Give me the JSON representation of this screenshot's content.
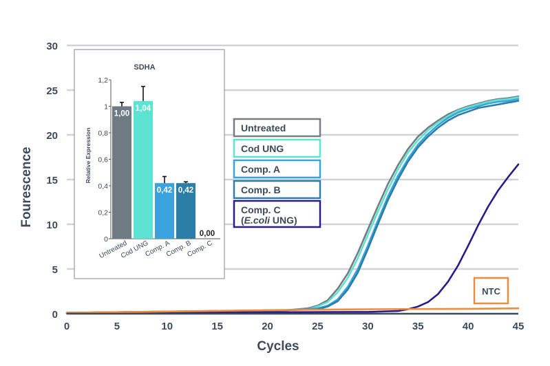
{
  "chart_data": [
    {
      "type": "line",
      "title": "",
      "xlabel": "Cycles",
      "ylabel": "Fourescence",
      "xlim": [
        0,
        45
      ],
      "ylim": [
        0,
        30
      ],
      "xticks": [
        "0",
        "5",
        "10",
        "15",
        "20",
        "25",
        "30",
        "35",
        "40",
        "45"
      ],
      "yticks": [
        "0",
        "5",
        "10",
        "15",
        "20",
        "25",
        "30"
      ],
      "grid": true,
      "series": [
        {
          "name": "Untreated",
          "color": "#757c84",
          "x": [
            0,
            15,
            22,
            24,
            25,
            26,
            27,
            28,
            29,
            30,
            31,
            32,
            33,
            34,
            35,
            36,
            37,
            38,
            39,
            40,
            41,
            42,
            43,
            44,
            45
          ],
          "y": [
            0.1,
            0.3,
            0.4,
            0.6,
            0.9,
            1.5,
            2.8,
            4.5,
            6.8,
            9.4,
            12.0,
            14.5,
            16.6,
            18.4,
            19.8,
            20.8,
            21.6,
            22.3,
            22.8,
            23.2,
            23.5,
            23.8,
            24.0,
            24.1,
            24.3
          ]
        },
        {
          "name": "Cod UNG",
          "color": "#5de3d2",
          "x": [
            0,
            15,
            22,
            24,
            25,
            26,
            27,
            28,
            29,
            30,
            31,
            32,
            33,
            34,
            35,
            36,
            37,
            38,
            39,
            40,
            41,
            42,
            43,
            44,
            45
          ],
          "y": [
            0.1,
            0.3,
            0.4,
            0.5,
            0.8,
            1.3,
            2.4,
            4.0,
            6.2,
            8.8,
            11.4,
            13.9,
            16.1,
            18.0,
            19.4,
            20.5,
            21.4,
            22.1,
            22.7,
            23.1,
            23.4,
            23.7,
            23.9,
            24.0,
            24.2
          ]
        },
        {
          "name": "Comp. A",
          "color": "#3aa3dd",
          "x": [
            0,
            15,
            22,
            25,
            26,
            27,
            28,
            29,
            30,
            31,
            32,
            33,
            34,
            35,
            36,
            37,
            38,
            39,
            40,
            41,
            42,
            43,
            44,
            45
          ],
          "y": [
            0.1,
            0.3,
            0.4,
            0.6,
            0.9,
            1.6,
            3.0,
            5.0,
            7.6,
            10.4,
            13.1,
            15.4,
            17.3,
            18.9,
            20.1,
            21.1,
            21.9,
            22.5,
            22.9,
            23.2,
            23.5,
            23.7,
            23.8,
            24.0
          ]
        },
        {
          "name": "Comp. B",
          "color": "#2b7ea8",
          "x": [
            0,
            15,
            22,
            25,
            26,
            27,
            28,
            29,
            30,
            31,
            32,
            33,
            34,
            35,
            36,
            37,
            38,
            39,
            40,
            41,
            42,
            43,
            44,
            45
          ],
          "y": [
            0.1,
            0.3,
            0.4,
            0.5,
            0.8,
            1.4,
            2.7,
            4.6,
            7.2,
            10.0,
            12.7,
            15.0,
            17.0,
            18.6,
            19.8,
            20.8,
            21.6,
            22.2,
            22.6,
            23.0,
            23.2,
            23.4,
            23.6,
            23.8
          ]
        },
        {
          "name": "Comp. C (E.coli UNG)",
          "color": "#2b1a8c",
          "x": [
            0,
            15,
            30,
            33,
            34,
            35,
            36,
            37,
            38,
            39,
            40,
            41,
            42,
            43,
            44,
            45
          ],
          "y": [
            0.05,
            0.15,
            0.2,
            0.3,
            0.5,
            0.8,
            1.3,
            2.2,
            3.6,
            5.4,
            7.6,
            9.9,
            12.0,
            13.8,
            15.3,
            16.7
          ]
        },
        {
          "name": "NTC",
          "color": "#f08a3c",
          "x": [
            0,
            10,
            20,
            30,
            40,
            45
          ],
          "y": [
            0.1,
            0.25,
            0.4,
            0.5,
            0.55,
            0.6
          ]
        }
      ],
      "legend": {
        "placement": "center-right",
        "entries": [
          {
            "label": "Untreated",
            "italic": "",
            "suffix": "",
            "color": "#757c84"
          },
          {
            "label": "Cod UNG",
            "italic": "",
            "suffix": "",
            "color": "#5de3d2"
          },
          {
            "label": "Comp. A",
            "italic": "",
            "suffix": "",
            "color": "#3aa3dd"
          },
          {
            "label": "Comp. B",
            "italic": "",
            "suffix": "",
            "color": "#2b7ea8"
          },
          {
            "label": "Comp. C",
            "italic": "E.coli",
            "suffix": " UNG)",
            "color": "#2b1a8c"
          }
        ]
      },
      "annotations": [
        {
          "text": "NTC",
          "color": "#f08a3c"
        }
      ]
    },
    {
      "type": "bar",
      "title": "SDHA",
      "xlabel": "",
      "ylabel": "Relative Expression",
      "ylim": [
        0,
        1.2
      ],
      "yticks": [
        "0",
        "0,2",
        "0,4",
        "0,6",
        "0,8",
        "1",
        "1,2"
      ],
      "categories": [
        "Untreated",
        "Cod UNG",
        "Comp. A",
        "Comp. B",
        "Comp. C"
      ],
      "values": [
        1.0,
        1.04,
        0.42,
        0.42,
        0.0
      ],
      "value_labels": [
        "1,00",
        "1,04",
        "0,42",
        "0,42",
        "0,00"
      ],
      "errors": [
        0.03,
        0.11,
        0.05,
        0.01,
        0.0
      ],
      "colors": [
        "#6e7b82",
        "#5de3d2",
        "#3aa3dd",
        "#2b7ea8",
        "#2b1a8c"
      ]
    }
  ]
}
